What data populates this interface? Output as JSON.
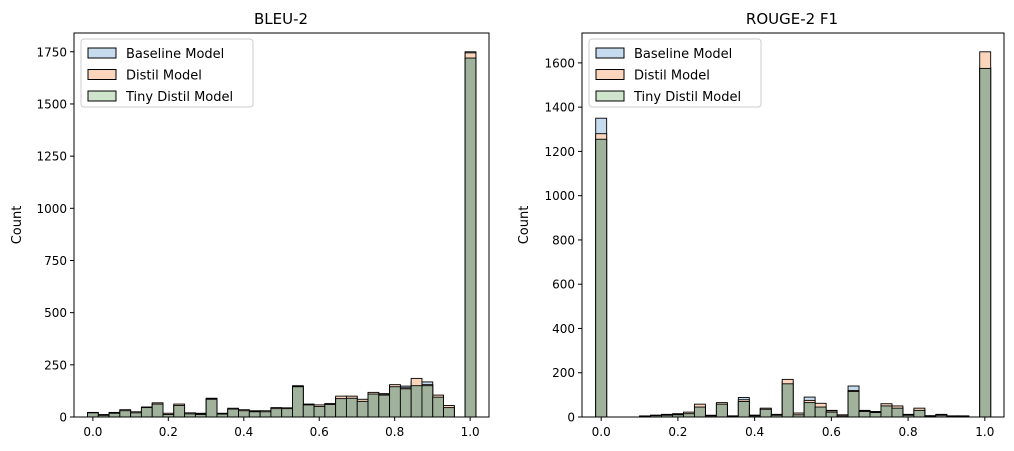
{
  "colors": {
    "baseline": "#c6dbee",
    "distil": "#fbd6bc",
    "tiny": "#a1b29c",
    "edge": "#000000",
    "legend_tiny": "#cfe5cb"
  },
  "chart_data": [
    {
      "type": "bar",
      "subtype": "histogram-overlay",
      "title": "BLEU-2",
      "xlabel": "",
      "ylabel": "Count",
      "xlim": [
        -0.05,
        1.05
      ],
      "ylim": [
        0,
        1840
      ],
      "xticks": [
        0.0,
        0.2,
        0.4,
        0.6,
        0.8,
        1.0
      ],
      "xtick_labels": [
        "0.0",
        "0.2",
        "0.4",
        "0.6",
        "0.8",
        "1.0"
      ],
      "yticks": [
        0,
        250,
        500,
        750,
        1000,
        1250,
        1500,
        1750
      ],
      "ytick_labels": [
        "0",
        "250",
        "500",
        "750",
        "1000",
        "1250",
        "1500",
        "1750"
      ],
      "legend_position": "upper left",
      "bins": {
        "start": -0.0143,
        "width": 0.0286,
        "count": 36
      },
      "series": [
        {
          "name": "Baseline Model",
          "color_key": "baseline",
          "values": [
            18,
            10,
            22,
            33,
            22,
            42,
            65,
            15,
            58,
            18,
            18,
            90,
            18,
            38,
            32,
            30,
            28,
            42,
            42,
            150,
            60,
            55,
            62,
            92,
            95,
            80,
            115,
            112,
            150,
            148,
            170,
            168,
            100,
            50,
            0,
            1750
          ]
        },
        {
          "name": "Distil Model",
          "color_key": "distil",
          "values": [
            22,
            12,
            20,
            35,
            25,
            48,
            68,
            18,
            62,
            20,
            15,
            88,
            16,
            42,
            35,
            28,
            30,
            45,
            44,
            148,
            62,
            58,
            65,
            100,
            100,
            85,
            118,
            110,
            155,
            140,
            185,
            155,
            105,
            55,
            0,
            1745
          ]
        },
        {
          "name": "Tiny Distil Model",
          "color_key": "tiny",
          "values": [
            20,
            8,
            18,
            30,
            20,
            45,
            62,
            12,
            55,
            15,
            12,
            85,
            14,
            38,
            30,
            25,
            25,
            40,
            40,
            145,
            58,
            50,
            60,
            88,
            90,
            75,
            110,
            105,
            145,
            135,
            150,
            150,
            95,
            45,
            0,
            1720
          ]
        }
      ]
    },
    {
      "type": "bar",
      "subtype": "histogram-overlay",
      "title": "ROUGE-2 F1",
      "xlabel": "",
      "ylabel": "Count",
      "xlim": [
        -0.05,
        1.05
      ],
      "ylim": [
        0,
        1735
      ],
      "xticks": [
        0.0,
        0.2,
        0.4,
        0.6,
        0.8,
        1.0
      ],
      "xtick_labels": [
        "0.0",
        "0.2",
        "0.4",
        "0.6",
        "0.8",
        "1.0"
      ],
      "yticks": [
        0,
        200,
        400,
        600,
        800,
        1000,
        1200,
        1400,
        1600
      ],
      "ytick_labels": [
        "0",
        "200",
        "400",
        "600",
        "800",
        "1000",
        "1200",
        "1400",
        "1600"
      ],
      "legend_position": "upper left",
      "bins": {
        "start": -0.0143,
        "width": 0.0286,
        "count": 36
      },
      "series": [
        {
          "name": "Baseline Model",
          "color_key": "baseline",
          "values": [
            1350,
            0,
            0,
            0,
            5,
            8,
            12,
            15,
            20,
            50,
            8,
            62,
            5,
            88,
            8,
            38,
            12,
            160,
            15,
            90,
            55,
            30,
            8,
            140,
            30,
            25,
            55,
            45,
            12,
            35,
            5,
            12,
            5,
            5,
            0,
            1580
          ]
        },
        {
          "name": "Distil Model",
          "color_key": "distil",
          "values": [
            1280,
            0,
            0,
            0,
            3,
            8,
            10,
            12,
            22,
            58,
            6,
            65,
            5,
            78,
            8,
            40,
            10,
            170,
            18,
            75,
            62,
            28,
            10,
            120,
            28,
            22,
            60,
            50,
            10,
            40,
            6,
            10,
            5,
            5,
            0,
            1650
          ]
        },
        {
          "name": "Tiny Distil Model",
          "color_key": "tiny",
          "values": [
            1255,
            0,
            0,
            0,
            2,
            6,
            8,
            10,
            15,
            45,
            5,
            58,
            4,
            70,
            5,
            35,
            8,
            150,
            10,
            65,
            45,
            22,
            5,
            115,
            25,
            20,
            50,
            40,
            8,
            30,
            4,
            8,
            4,
            4,
            0,
            1575
          ]
        }
      ]
    }
  ]
}
